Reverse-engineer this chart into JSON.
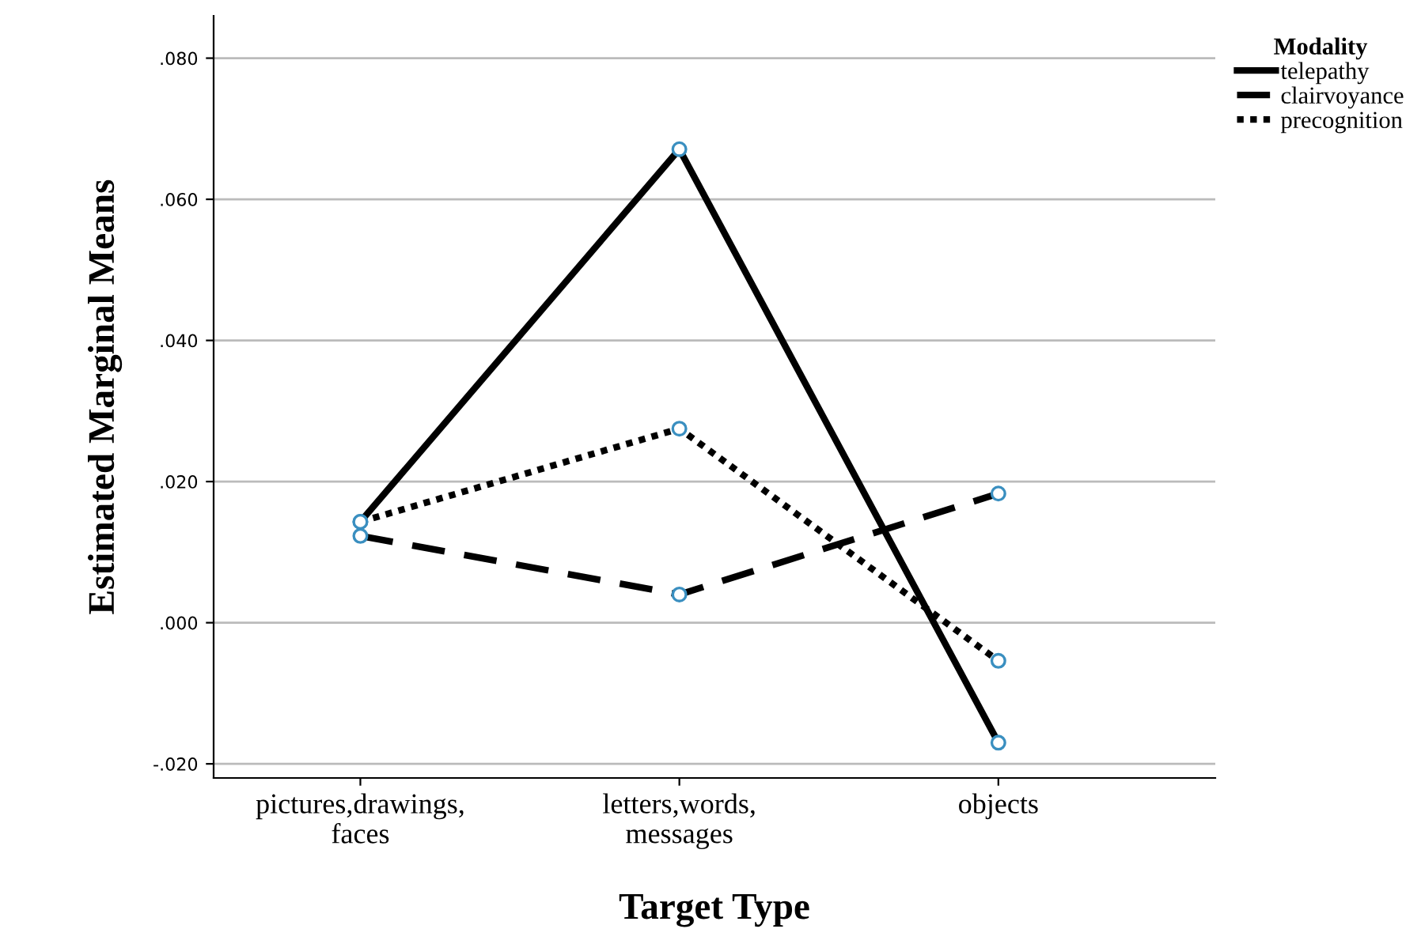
{
  "chart_data": {
    "type": "line",
    "xlabel": "Target Type",
    "ylabel": "Estimated Marginal Means",
    "legend_title": "Modality",
    "categories": [
      "pictures,drawings,\nfaces",
      "letters,words,\nmessages",
      "objects"
    ],
    "series": [
      {
        "name": "telepathy",
        "color": "#000000",
        "line_style": "solid",
        "values": [
          0.0143,
          0.0671,
          -0.017
        ]
      },
      {
        "name": "clairvoyance",
        "color": "#000000",
        "line_style": "dashed",
        "values": [
          0.0123,
          0.004,
          0.0183
        ]
      },
      {
        "name": "precognition",
        "color": "#000000",
        "line_style": "dotted",
        "values": [
          0.0143,
          0.0275,
          -0.0054
        ]
      }
    ],
    "ylim": [
      -0.022,
      0.086
    ],
    "yticks": [
      {
        "value": -0.02,
        "label": "-.020"
      },
      {
        "value": 0.0,
        "label": ".000"
      },
      {
        "value": 0.02,
        "label": ".020"
      },
      {
        "value": 0.04,
        "label": ".040"
      },
      {
        "value": 0.06,
        "label": ".060"
      },
      {
        "value": 0.08,
        "label": ".080"
      }
    ],
    "grid": "y",
    "legend": "top right",
    "marker": "circle"
  }
}
